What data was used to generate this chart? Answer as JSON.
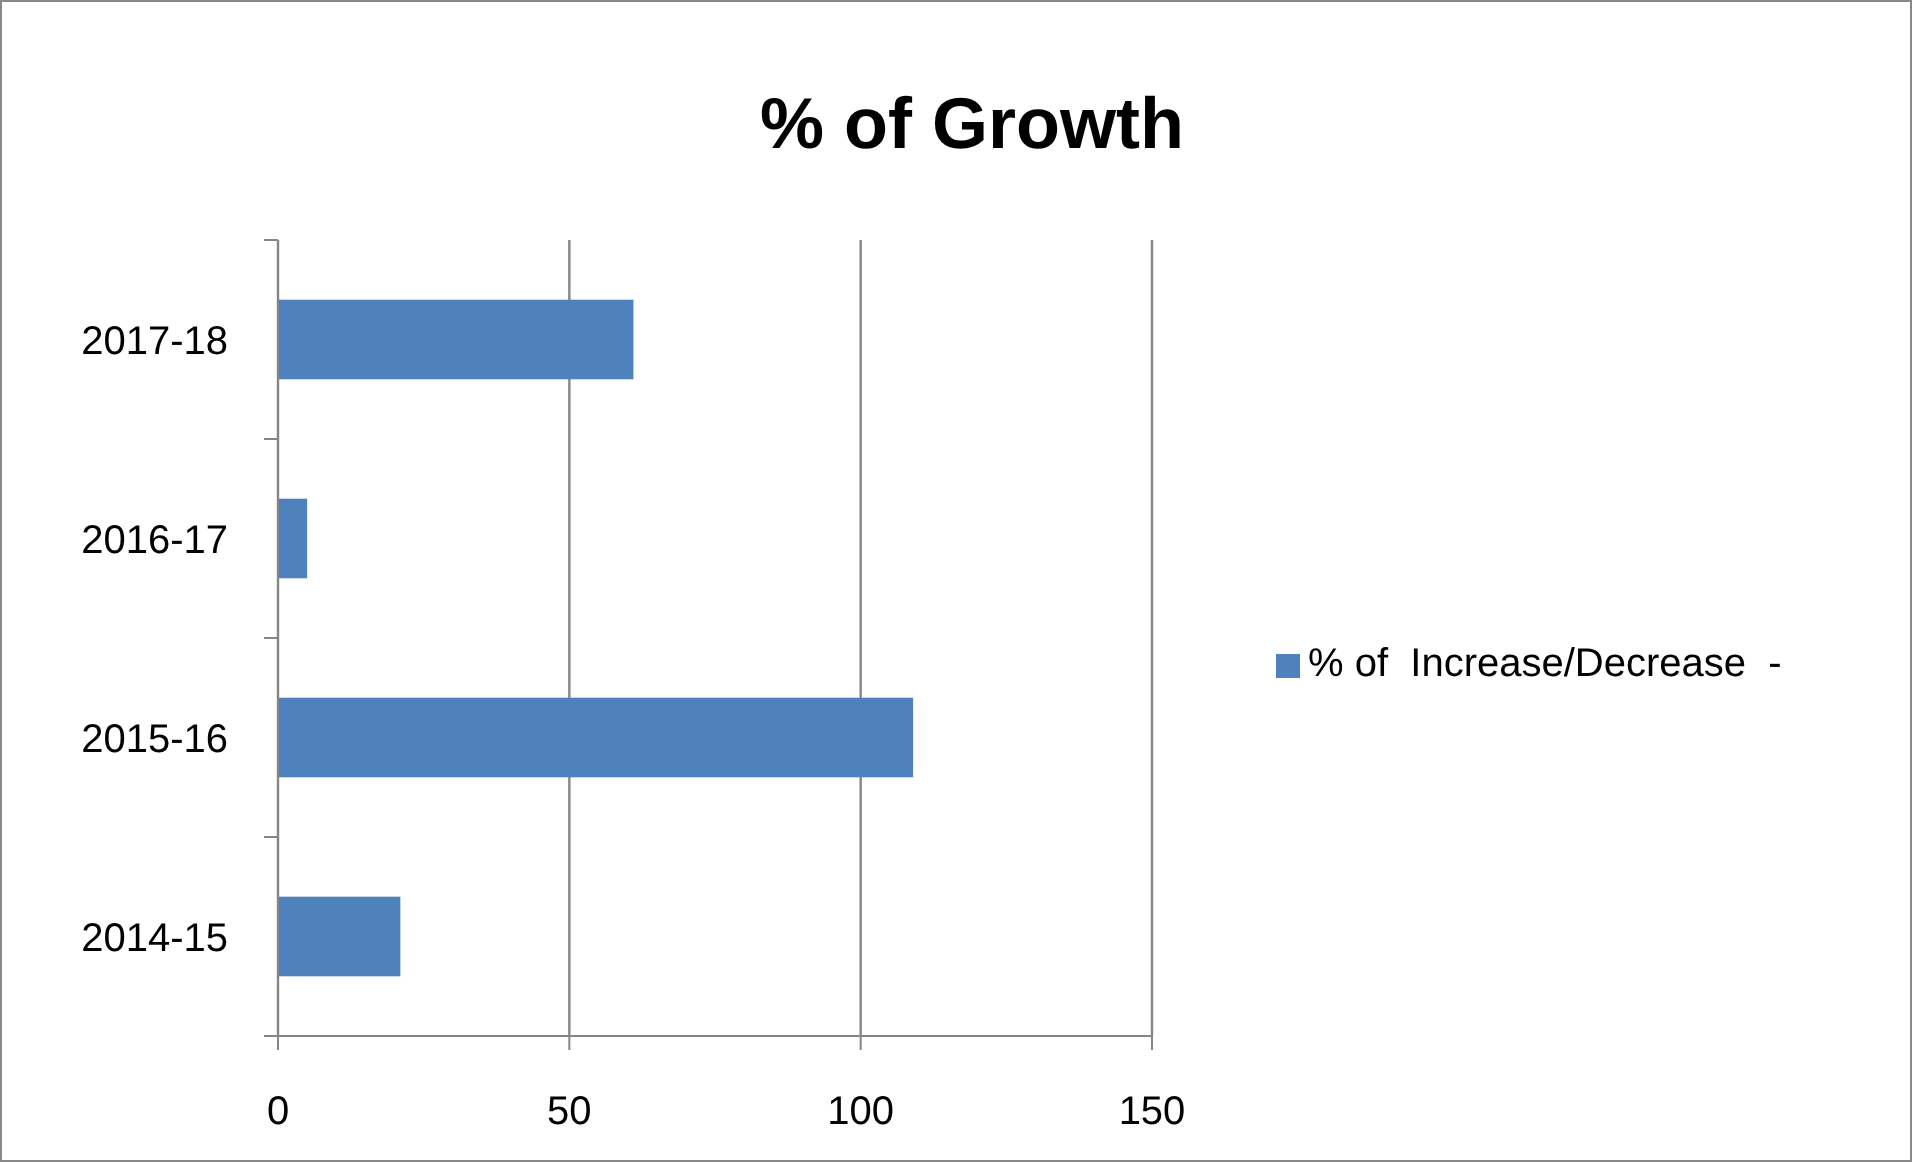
{
  "chart_data": {
    "type": "bar",
    "orientation": "horizontal",
    "title": "% of Growth",
    "categories": [
      "2017-18",
      "2016-17",
      "2015-16",
      "2014-15"
    ],
    "series": [
      {
        "name": "% of  Increase/Decrease  -",
        "color": "#4f81bd",
        "values": [
          61,
          5,
          109,
          21
        ]
      }
    ],
    "xlim": [
      0,
      150
    ],
    "xticks": [
      0,
      50,
      100,
      150
    ],
    "grid": "x",
    "legend": "right"
  }
}
